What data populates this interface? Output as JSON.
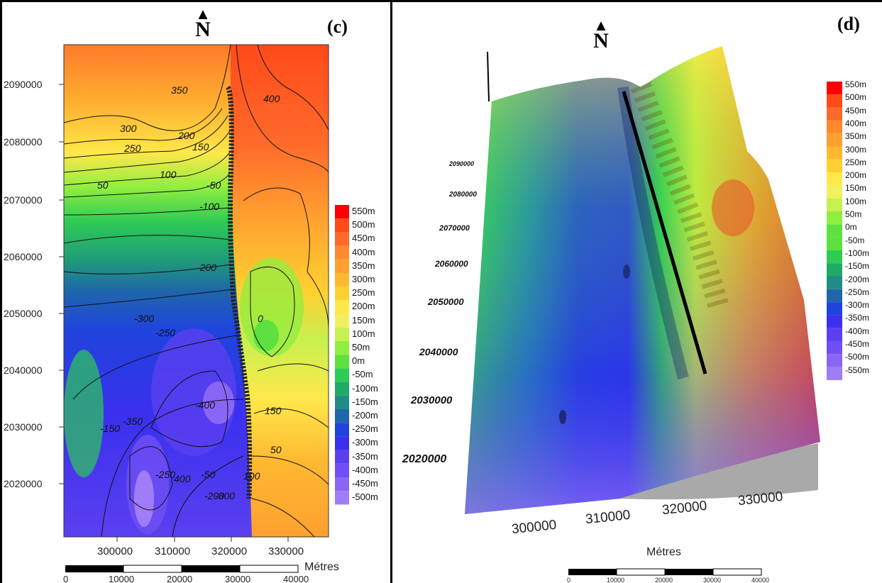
{
  "panel_c": {
    "label": "(c)",
    "north_symbol": "N",
    "y_ticks": [
      "2090000",
      "2080000",
      "2070000",
      "2060000",
      "2050000",
      "2040000",
      "2030000",
      "2020000"
    ],
    "x_ticks": [
      "300000",
      "310000",
      "320000",
      "330000"
    ],
    "scale_unit": "Métres",
    "scale_ticks": [
      "0",
      "10000",
      "20000",
      "30000",
      "40000"
    ],
    "legend": [
      "550m",
      "500m",
      "450m",
      "400m",
      "350m",
      "300m",
      "250m",
      "200m",
      "150m",
      "100m",
      "50m",
      "0m",
      "-50m",
      "-100m",
      "-150m",
      "-200m",
      "-250m",
      "-300m",
      "-350m",
      "-400m",
      "-450m",
      "-500m"
    ],
    "contour_labels": [
      "350",
      "400",
      "300",
      "250",
      "200",
      "150",
      "100",
      "50",
      "-50",
      "-100",
      "-200",
      "-300",
      "-250",
      "-400",
      "-350",
      "-150",
      "0",
      "50",
      "150",
      "100",
      "-50",
      "-200",
      "-250",
      "400",
      "-300"
    ]
  },
  "panel_d": {
    "label": "(d)",
    "north_symbol": "N",
    "y_ticks": [
      "2090000",
      "2080000",
      "2070000",
      "2060000",
      "2050000",
      "2040000",
      "2030000",
      "2020000"
    ],
    "x_ticks": [
      "300000",
      "310000",
      "320000",
      "330000"
    ],
    "scale_unit": "Métres",
    "scale_ticks": [
      "0",
      "10000",
      "20000",
      "30000",
      "40000"
    ],
    "legend": [
      "550m",
      "500m",
      "450m",
      "400m",
      "350m",
      "300m",
      "250m",
      "200m",
      "150m",
      "100m",
      "50m",
      "0m",
      "-50m",
      "-100m",
      "-150m",
      "-200m",
      "-250m",
      "-300m",
      "-350m",
      "-400m",
      "-450m",
      "-500m",
      "-550m"
    ]
  },
  "colors": {
    "ramp": [
      "#ff0000",
      "#ff4a1a",
      "#ff6a2a",
      "#ff8a2e",
      "#ffa030",
      "#ffb830",
      "#ffd030",
      "#ffe84a",
      "#f0f060",
      "#c8f050",
      "#90ee40",
      "#5ee040",
      "#2ecb55",
      "#1faa66",
      "#208c86",
      "#1f66aa",
      "#1f44dd",
      "#3a30ee",
      "#5a40f0",
      "#7050f4",
      "#8a66f6",
      "#a07cf8"
    ]
  }
}
